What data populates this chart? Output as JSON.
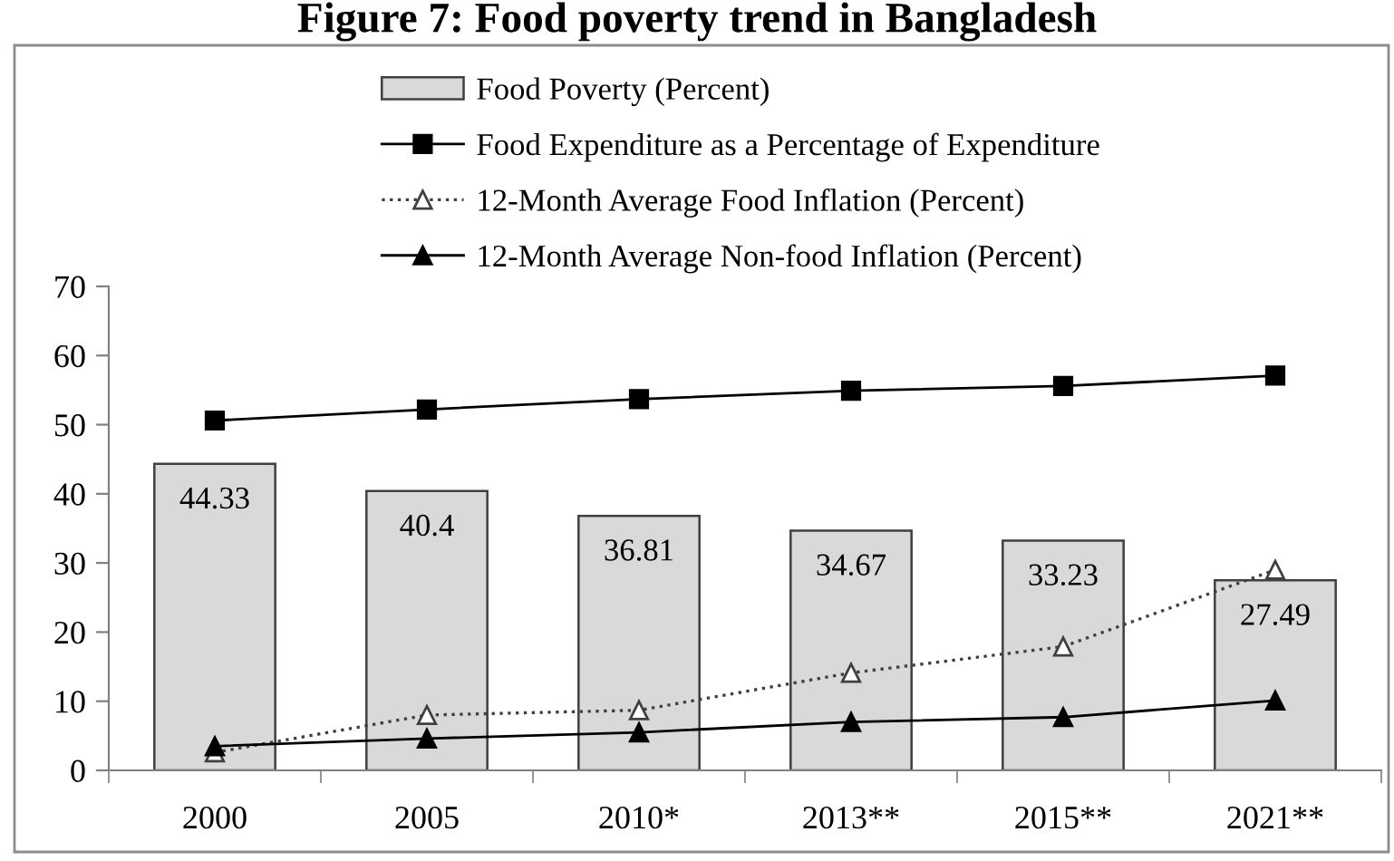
{
  "chart_data": {
    "type": "bar",
    "title": "Figure 7: Food poverty trend in Bangladesh",
    "categories": [
      "2000",
      "2005",
      "2010*",
      "2013**",
      "2015**",
      "2021**"
    ],
    "series": [
      {
        "name": "Food Poverty (Percent)",
        "color": "#d9d9d9",
        "values": [
          44.33,
          40.4,
          36.81,
          34.67,
          33.23,
          27.49
        ],
        "value_labels": [
          "44.33",
          "40.4",
          "36.81",
          "34.67",
          "33.23",
          "27.49"
        ]
      },
      {
        "name": "Food Expenditure as a Percentage of Expenditure",
        "type": "line",
        "color": "#000000",
        "marker": "square",
        "line_style": "solid",
        "values": [
          50.6,
          52.2,
          53.7,
          54.9,
          55.6,
          57.1
        ]
      },
      {
        "name": "12-Month Average Food Inflation (Percent)",
        "type": "line",
        "color": "#404040",
        "marker": "triangle",
        "line_style": "dotted",
        "values": [
          2.6,
          8.0,
          8.7,
          14.1,
          17.9,
          29.0
        ]
      },
      {
        "name": "12-Month Average Non-food Inflation (Percent)",
        "type": "line",
        "color": "#000000",
        "marker": "triangle",
        "line_style": "solid",
        "values": [
          3.5,
          4.6,
          5.5,
          7.0,
          7.7,
          10.1
        ]
      }
    ],
    "ylim": [
      0,
      70
    ],
    "yticks": [
      0,
      10,
      20,
      30,
      40,
      50,
      60,
      70
    ],
    "legend": "top"
  }
}
